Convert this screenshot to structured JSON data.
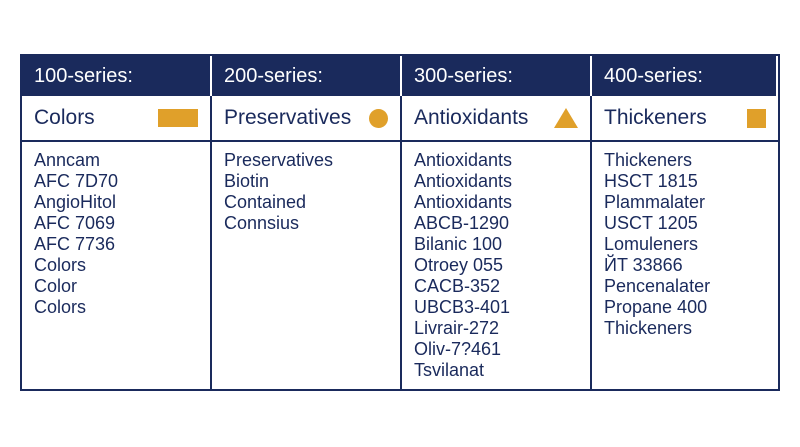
{
  "accent_color": "#e0a02a",
  "header_color": "#1a2a5c",
  "columns": [
    {
      "series": "100-series:",
      "category": "Colors",
      "icon": "rectangle-icon",
      "items": [
        "Anncam",
        "AFC 7D70",
        "AngioHitol",
        "AFC 7069",
        "AFC 7736",
        "Colors",
        "Color",
        "Colors"
      ]
    },
    {
      "series": "200-series:",
      "category": "Preservatives",
      "icon": "circle-icon",
      "items": [
        "Preservatives",
        "Biotin",
        "Contained",
        "Connsius"
      ]
    },
    {
      "series": "300-series:",
      "category": "Antioxidants",
      "icon": "triangle-icon",
      "items": [
        "Antioxidants",
        "Antioxidants",
        "Antioxidants",
        "ABCB-1290",
        "Bilanic 100",
        "Otroey 055",
        "CACB-352",
        "UBCB3-401",
        "Livrair-272",
        "Oliv-7?461",
        "Tsvilanat"
      ]
    },
    {
      "series": "400-series:",
      "category": "Thickeners",
      "icon": "square-icon",
      "items": [
        "Thickeners",
        "HSCT 1815",
        "Plammalater",
        "USCT 1205",
        "Lomuleners",
        "ЙT 33866",
        "Pencenalater",
        "Propane 400",
        "Thickeners"
      ]
    }
  ]
}
